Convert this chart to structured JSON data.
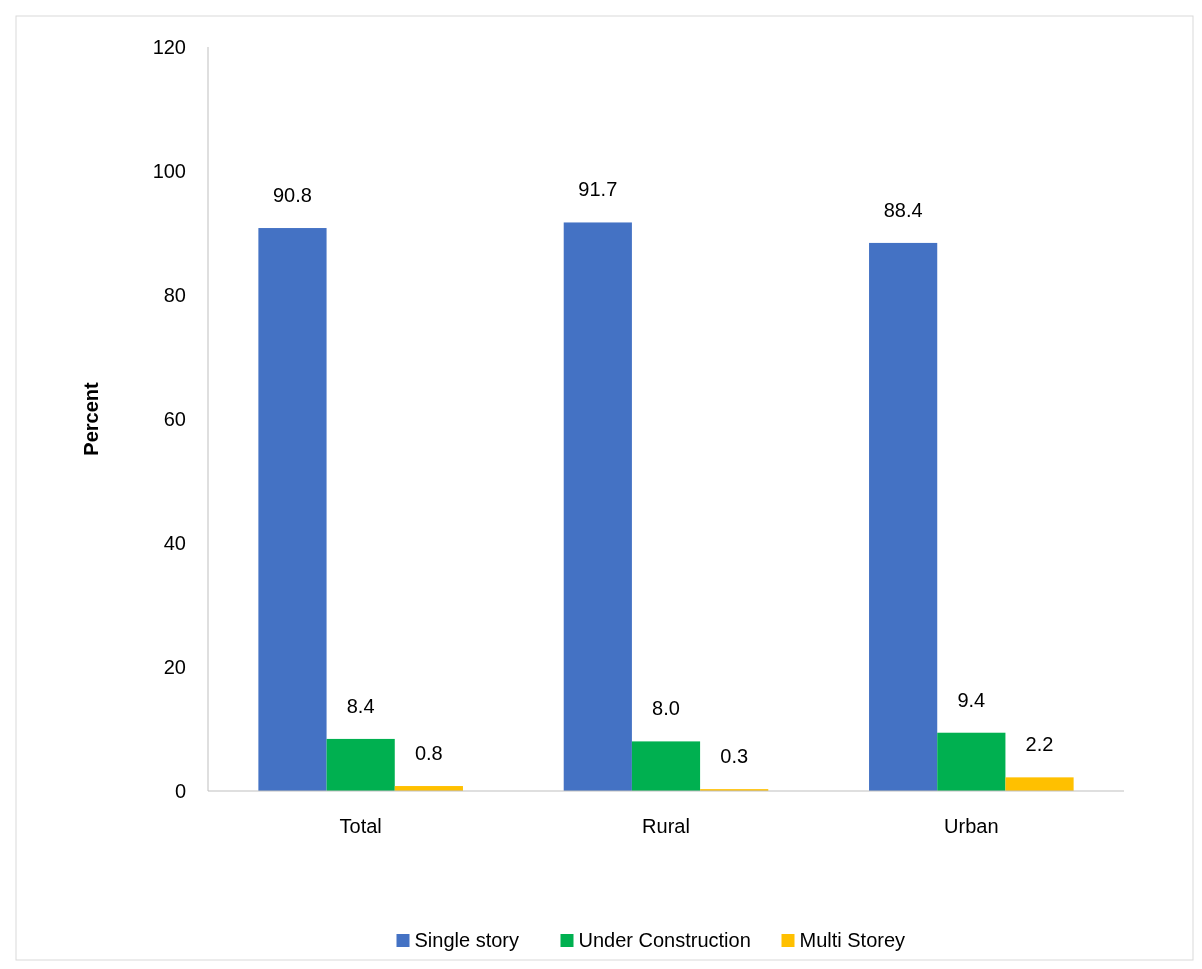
{
  "chart_data": {
    "type": "bar",
    "ylabel": "Percent",
    "categories": [
      "Total",
      "Rural",
      "Urban"
    ],
    "series": [
      {
        "name": "Single story",
        "color": "#4472c4",
        "values": [
          90.8,
          91.7,
          88.4
        ]
      },
      {
        "name": "Under Construction",
        "color": "#00b050",
        "values": [
          8.4,
          8.0,
          9.4
        ]
      },
      {
        "name": "Multi Storey",
        "color": "#ffc000",
        "values": [
          0.8,
          0.3,
          2.2
        ]
      }
    ],
    "value_labels": [
      [
        "90.8",
        "91.7",
        "88.4"
      ],
      [
        "8.4",
        "8.0",
        "9.4"
      ],
      [
        "0.8",
        "0.3",
        "2.2"
      ]
    ],
    "ylim": [
      0,
      120
    ],
    "yticks": [
      0,
      20,
      40,
      60,
      80,
      100,
      120
    ],
    "grid": false,
    "legend": "bottom"
  }
}
